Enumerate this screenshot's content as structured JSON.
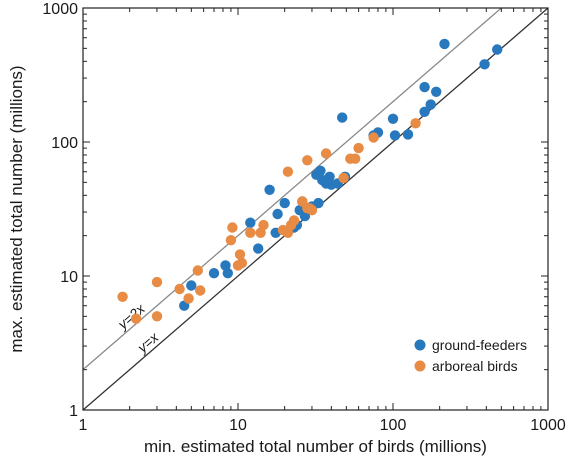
{
  "chart_data": {
    "type": "scatter",
    "xlabel": "min. estimated total number of birds (millions)",
    "ylabel": "max. estimated total number (millions)",
    "xscale": "log",
    "yscale": "log",
    "xlim": [
      1,
      1000
    ],
    "ylim": [
      1,
      1000
    ],
    "xticks": [
      {
        "value": 1,
        "label": "1"
      },
      {
        "value": 10,
        "label": "10"
      },
      {
        "value": 100,
        "label": "100"
      },
      {
        "value": 1000,
        "label": "1000"
      }
    ],
    "yticks": [
      {
        "value": 1,
        "label": "1"
      },
      {
        "value": 10,
        "label": "10"
      },
      {
        "value": 100,
        "label": "100"
      },
      {
        "value": 1000,
        "label": "1000"
      }
    ],
    "grid": false,
    "legend_position": "bottom-right",
    "reference_lines": [
      {
        "label": "y=x",
        "slope": 1,
        "color": "#333333"
      },
      {
        "label": "y=2x",
        "slope": 2,
        "color": "#8a8a8a"
      }
    ],
    "series": [
      {
        "name": "ground-feeders",
        "color": "#2878bd",
        "points": [
          [
            4.5,
            6
          ],
          [
            5,
            8.5
          ],
          [
            7,
            10.5
          ],
          [
            8.3,
            12
          ],
          [
            8.6,
            10.5
          ],
          [
            12,
            25
          ],
          [
            13.5,
            16
          ],
          [
            16,
            44
          ],
          [
            17.5,
            21
          ],
          [
            18,
            29
          ],
          [
            20,
            35
          ],
          [
            23,
            23
          ],
          [
            24,
            24
          ],
          [
            25,
            31
          ],
          [
            26,
            36
          ],
          [
            27,
            28
          ],
          [
            28,
            32
          ],
          [
            30,
            33
          ],
          [
            32,
            57
          ],
          [
            33,
            35
          ],
          [
            34,
            61
          ],
          [
            35,
            52
          ],
          [
            37,
            49
          ],
          [
            39,
            55
          ],
          [
            40,
            48
          ],
          [
            44,
            49
          ],
          [
            47,
            152
          ],
          [
            49,
            55
          ],
          [
            75,
            112
          ],
          [
            80,
            118
          ],
          [
            100,
            149
          ],
          [
            103,
            112
          ],
          [
            125,
            114
          ],
          [
            160,
            168
          ],
          [
            160,
            257
          ],
          [
            175,
            190
          ],
          [
            190,
            237
          ],
          [
            215,
            540
          ],
          [
            390,
            380
          ],
          [
            470,
            490
          ]
        ]
      },
      {
        "name": "arboreal birds",
        "color": "#e78b45",
        "points": [
          [
            1.8,
            7
          ],
          [
            2.2,
            4.8
          ],
          [
            3,
            9
          ],
          [
            3,
            5
          ],
          [
            4.2,
            8
          ],
          [
            4.8,
            6.8
          ],
          [
            5.5,
            11
          ],
          [
            5.7,
            7.8
          ],
          [
            9,
            18.5
          ],
          [
            9.2,
            23
          ],
          [
            10,
            12
          ],
          [
            10.3,
            14.5
          ],
          [
            10.6,
            12.5
          ],
          [
            12,
            21
          ],
          [
            14,
            21
          ],
          [
            14.6,
            24
          ],
          [
            19.5,
            22
          ],
          [
            21,
            21
          ],
          [
            21,
            60
          ],
          [
            22,
            24
          ],
          [
            23,
            26
          ],
          [
            26,
            36
          ],
          [
            28,
            32
          ],
          [
            28,
            73
          ],
          [
            29,
            32
          ],
          [
            30,
            31
          ],
          [
            37,
            82
          ],
          [
            48,
            54
          ],
          [
            53,
            75
          ],
          [
            57,
            75
          ],
          [
            60,
            90
          ],
          [
            75,
            108
          ],
          [
            140,
            138
          ]
        ]
      }
    ]
  }
}
